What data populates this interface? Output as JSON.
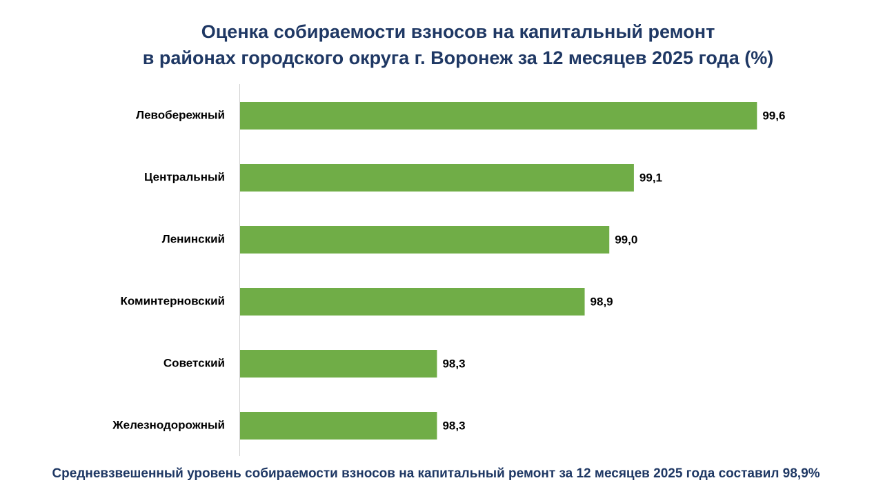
{
  "chart_data": {
    "type": "hbar",
    "title": [
      "Оценка собираемости взносов на капитальный ремонт",
      "в районах городского округа г. Воронеж за 12 месяцев 2025 года (%)"
    ],
    "categories": [
      "Левобережный",
      "Центральный",
      "Ленинский",
      "Коминтерновский",
      "Советский",
      "Железнодорожный"
    ],
    "values": [
      99.6,
      99.1,
      99.0,
      98.9,
      98.3,
      98.3
    ],
    "value_labels": [
      "99,6",
      "99,1",
      "99,0",
      "98,9",
      "98,3",
      "98,3"
    ],
    "color": "#70ad47",
    "xlim": [
      97.5,
      99.7
    ],
    "annotation": "Средневзвешенный уровень собираемости взносов на капитальный ремонт за 12 месяцев 2025 года составил 98,9%"
  }
}
